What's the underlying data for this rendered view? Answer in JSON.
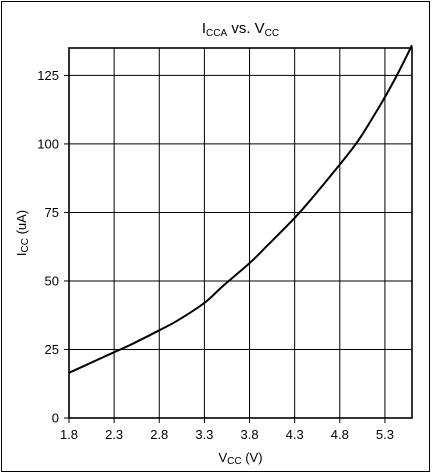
{
  "chart_data": {
    "type": "line",
    "title": {
      "main": "I",
      "main_sub": "CCA",
      "vs": " vs. V",
      "vs_sub": "CC"
    },
    "xlabel": {
      "main": "V",
      "sub": "CC",
      "unit": " (V)"
    },
    "ylabel": {
      "main": "I",
      "sub": "CC",
      "unit": " (uA)"
    },
    "xlim": [
      1.8,
      5.6
    ],
    "ylim": [
      0,
      135
    ],
    "x_ticks": [
      1.8,
      2.3,
      2.8,
      3.3,
      3.8,
      4.3,
      4.8,
      5.3
    ],
    "x_tick_labels": [
      "1.8",
      "2.3",
      "2.8",
      "3.3",
      "3.8",
      "4.3",
      "4.8",
      "5.3"
    ],
    "y_ticks": [
      0,
      25,
      50,
      75,
      100,
      125
    ],
    "y_tick_labels": [
      "0",
      "25",
      "50",
      "75",
      "100",
      "125"
    ],
    "grid": true,
    "series": [
      {
        "x": [
          1.8,
          2.0,
          2.3,
          2.5,
          2.8,
          3.0,
          3.3,
          3.5,
          3.8,
          4.0,
          4.3,
          4.5,
          4.8,
          5.0,
          5.2,
          5.4,
          5.6
        ],
        "y": [
          16.5,
          19.5,
          24,
          27,
          32,
          35.5,
          42,
          48,
          56.5,
          63,
          73,
          80.5,
          92.5,
          101,
          111.5,
          123,
          136
        ],
        "color": "#000000"
      }
    ]
  }
}
